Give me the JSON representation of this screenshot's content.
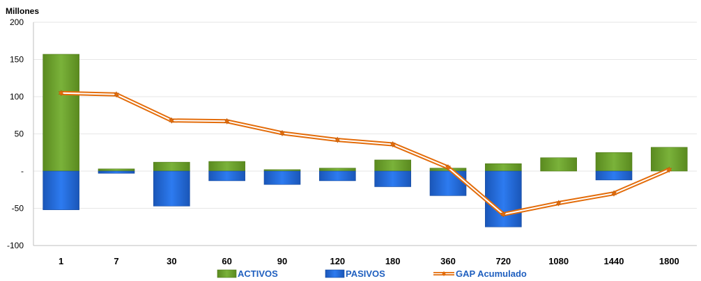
{
  "chart_data": {
    "type": "bar",
    "unit_label": "Millones",
    "categories": [
      "1",
      "7",
      "30",
      "60",
      "90",
      "120",
      "180",
      "360",
      "720",
      "1080",
      "1440",
      "1800"
    ],
    "ylim": [
      -100,
      200
    ],
    "yticks": [
      {
        "value": 200,
        "label": "200"
      },
      {
        "value": 150,
        "label": "150"
      },
      {
        "value": 100,
        "label": "100"
      },
      {
        "value": 50,
        "label": "50"
      },
      {
        "value": 0,
        "label": "-"
      },
      {
        "value": -50,
        "label": "-50"
      },
      {
        "value": -100,
        "label": "-100"
      }
    ],
    "grid": true,
    "legend_position": "bottom",
    "series": [
      {
        "name": "ACTIVOS",
        "kind": "bar",
        "color": "#6a9e2a",
        "values": [
          157,
          3,
          12,
          13,
          2,
          4,
          15,
          4,
          10,
          18,
          25,
          32
        ]
      },
      {
        "name": "PASIVOS",
        "kind": "bar",
        "color": "#1f66d6",
        "values": [
          -52,
          -3,
          -47,
          -13,
          -18,
          -13,
          -21,
          -33,
          -75,
          0,
          -12,
          0
        ]
      },
      {
        "name": "GAP Acumulado",
        "kind": "line",
        "color": "#e36c0a",
        "values": [
          105,
          103,
          68,
          67,
          51,
          42,
          36,
          5,
          -58,
          -43,
          -30,
          2
        ]
      }
    ]
  }
}
